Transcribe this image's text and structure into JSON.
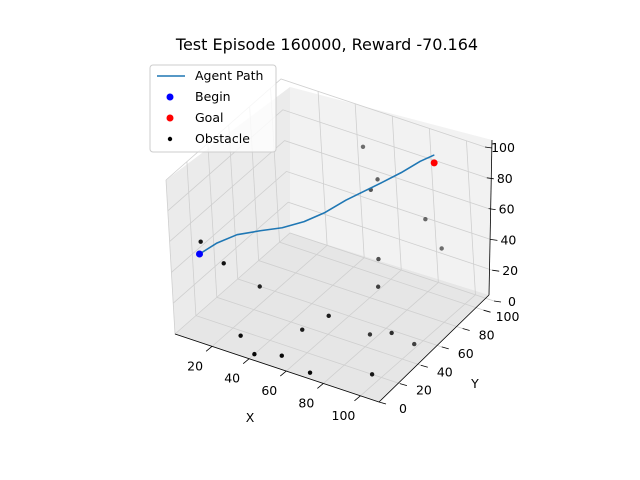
{
  "chart_data": {
    "type": "scatter",
    "title": "Test Episode 160000, Reward -70.164",
    "xlabel": "X",
    "ylabel": "Y",
    "zlabel": "",
    "xlim": [
      0,
      110
    ],
    "ylim": [
      0,
      110
    ],
    "zlim": [
      0,
      100
    ],
    "x_ticks": [
      "20",
      "40",
      "60",
      "80",
      "100"
    ],
    "y_ticks": [
      "0",
      "20",
      "40",
      "60",
      "80",
      "100"
    ],
    "z_ticks": [
      "0",
      "20",
      "40",
      "60",
      "80",
      "100"
    ],
    "grid": true,
    "legend": {
      "position": "top-left",
      "entries": [
        "Agent Path",
        "Begin",
        "Goal",
        "Obstacle"
      ]
    },
    "series": [
      {
        "name": "Agent Path",
        "kind": "line",
        "color": "#1f77b4",
        "points": [
          [
            10,
            10,
            50
          ],
          [
            17,
            15,
            57
          ],
          [
            24,
            22,
            61
          ],
          [
            32,
            30,
            62
          ],
          [
            40,
            37,
            63
          ],
          [
            48,
            44,
            66
          ],
          [
            55,
            52,
            70
          ],
          [
            62,
            60,
            76
          ],
          [
            68,
            67,
            80
          ],
          [
            74,
            74,
            84
          ],
          [
            80,
            82,
            88
          ],
          [
            86,
            90,
            93
          ],
          [
            90,
            96,
            95
          ]
        ]
      },
      {
        "name": "Begin",
        "kind": "scatter",
        "color": "#0000ff",
        "points": [
          [
            10,
            10,
            50
          ]
        ]
      },
      {
        "name": "Goal",
        "kind": "scatter",
        "color": "#ff0000",
        "points": [
          [
            90,
            96,
            90
          ]
        ]
      },
      {
        "name": "Obstacle",
        "kind": "scatter",
        "color": "#000000",
        "points": [
          [
            55,
            90,
            90
          ],
          [
            68,
            80,
            80
          ],
          [
            70,
            70,
            80
          ],
          [
            90,
            85,
            60
          ],
          [
            5,
            20,
            50
          ],
          [
            20,
            15,
            45
          ],
          [
            95,
            90,
            40
          ],
          [
            75,
            65,
            40
          ],
          [
            80,
            55,
            30
          ],
          [
            95,
            40,
            15
          ],
          [
            30,
            30,
            25
          ],
          [
            55,
            25,
            10
          ],
          [
            80,
            45,
            5
          ],
          [
            98,
            55,
            0
          ],
          [
            30,
            10,
            5
          ],
          [
            95,
            20,
            0
          ],
          [
            55,
            5,
            5
          ],
          [
            40,
            5,
            0
          ],
          [
            70,
            5,
            0
          ],
          [
            70,
            25,
            25
          ]
        ]
      }
    ]
  }
}
